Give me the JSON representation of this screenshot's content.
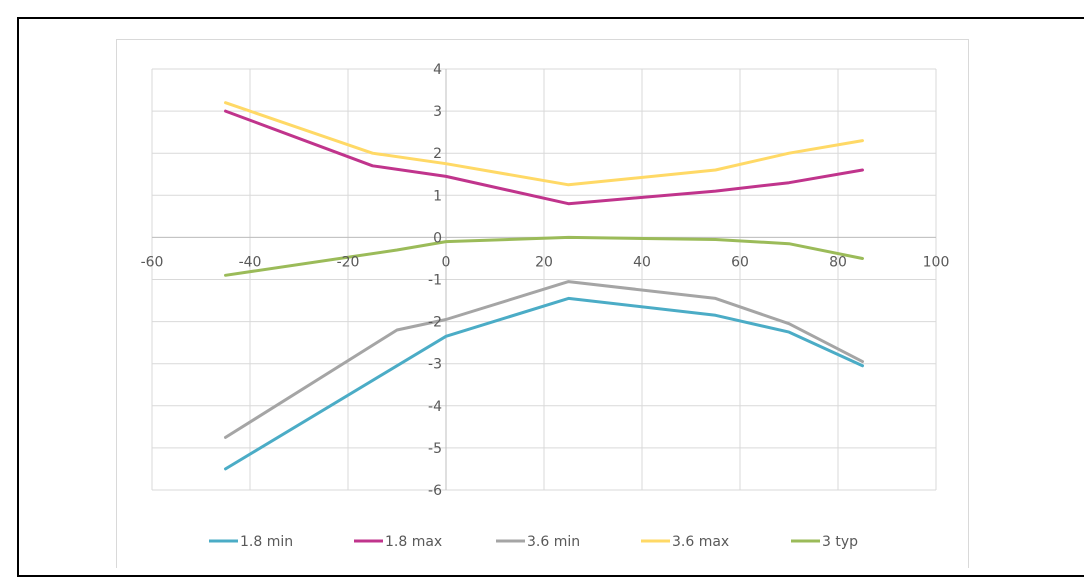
{
  "heading": "",
  "chart_data": {
    "type": "line",
    "xlim": [
      -60,
      100
    ],
    "ylim": [
      -6,
      4
    ],
    "x_ticks": [
      -60,
      -40,
      -20,
      0,
      20,
      40,
      60,
      80,
      100
    ],
    "y_ticks": [
      4,
      3,
      2,
      1,
      0,
      -1,
      -2,
      -3,
      -4,
      -5,
      -6
    ],
    "grid": true,
    "legend_position": "bottom",
    "series": [
      {
        "name": "1.8 min",
        "color": "#4bacc6",
        "x": [
          -45,
          0,
          25,
          55,
          70,
          85
        ],
        "y": [
          -5.5,
          -2.35,
          -1.45,
          -1.85,
          -2.25,
          -3.05
        ]
      },
      {
        "name": "1.8 max",
        "color": "#c0348c",
        "x": [
          -45,
          -15,
          0,
          25,
          55,
          70,
          85
        ],
        "y": [
          3.0,
          1.7,
          1.45,
          0.8,
          1.1,
          1.3,
          1.6
        ]
      },
      {
        "name": "3.6 min",
        "color": "#a5a5a5",
        "x": [
          -45,
          -10,
          0,
          25,
          55,
          70,
          85
        ],
        "y": [
          -4.75,
          -2.2,
          -1.95,
          -1.05,
          -1.45,
          -2.05,
          -2.95
        ]
      },
      {
        "name": "3.6 max",
        "color": "#ffd966",
        "x": [
          -45,
          -15,
          0,
          25,
          55,
          70,
          85
        ],
        "y": [
          3.2,
          2.0,
          1.75,
          1.25,
          1.6,
          2.0,
          2.3
        ]
      },
      {
        "name": "3 typ",
        "color": "#9bbb59",
        "x": [
          -45,
          -10,
          0,
          25,
          55,
          70,
          85
        ],
        "y": [
          -0.9,
          -0.3,
          -0.1,
          0.0,
          -0.05,
          -0.15,
          -0.5
        ]
      }
    ]
  }
}
